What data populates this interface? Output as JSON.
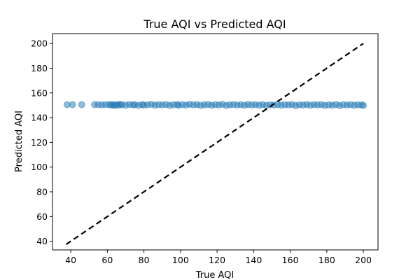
{
  "chart_data": {
    "type": "scatter",
    "title": "True AQI vs Predicted AQI",
    "xlabel": "True AQI",
    "ylabel": "Predicted AQI",
    "xlim": [
      30,
      208
    ],
    "ylim": [
      33,
      208
    ],
    "xticks": [
      40,
      60,
      80,
      100,
      120,
      140,
      160,
      180,
      200
    ],
    "yticks": [
      40,
      60,
      80,
      100,
      120,
      140,
      160,
      180,
      200
    ],
    "grid": false,
    "point_color": "#1f77b4",
    "point_alpha": 0.5,
    "reference_line": {
      "style": "dashed",
      "color": "#000000",
      "from": [
        37.5,
        37.5
      ],
      "to": [
        200,
        200
      ]
    },
    "series": [
      {
        "x": [
          38,
          41,
          46,
          53,
          55,
          57,
          59,
          61,
          62,
          63,
          64,
          65,
          66,
          67,
          68,
          70,
          72,
          74,
          75,
          77,
          79,
          80,
          82,
          84,
          86,
          88,
          90,
          92,
          94,
          96,
          98,
          99,
          101,
          103,
          105,
          107,
          109,
          111,
          113,
          115,
          117,
          119,
          121,
          123,
          125,
          127,
          129,
          131,
          133,
          135,
          137,
          139,
          141,
          143,
          145,
          147,
          149,
          151,
          153,
          155,
          157,
          159,
          161,
          163,
          165,
          167,
          169,
          171,
          173,
          175,
          177,
          179,
          181,
          183,
          185,
          187,
          189,
          191,
          193,
          195,
          197,
          199,
          200
        ],
        "y": [
          150.5,
          150.5,
          150.5,
          150.5,
          150.5,
          150.4,
          150.6,
          150.5,
          150.3,
          150.6,
          149.8,
          150.5,
          150.2,
          150.8,
          150.4,
          150.1,
          150.7,
          150.3,
          150.5,
          149.9,
          150.6,
          150.2,
          150.4,
          150.8,
          150.1,
          150.5,
          150.3,
          150.7,
          149.9,
          150.4,
          150.6,
          150.0,
          150.5,
          150.2,
          150.8,
          150.3,
          150.6,
          149.9,
          150.4,
          150.7,
          150.1,
          150.5,
          150.3,
          150.8,
          149.9,
          150.4,
          150.6,
          150.2,
          150.5,
          150.0,
          150.7,
          150.3,
          150.5,
          150.1,
          150.6,
          149.9,
          150.4,
          150.2,
          150.7,
          150.0,
          150.5,
          150.3,
          150.6,
          149.8,
          150.4,
          150.2,
          150.7,
          150.0,
          150.5,
          150.3,
          150.6,
          149.9,
          150.4,
          150.1,
          150.7,
          149.8,
          150.5,
          150.2,
          150.6,
          150.0,
          150.4,
          150.3,
          149.9
        ]
      }
    ]
  }
}
